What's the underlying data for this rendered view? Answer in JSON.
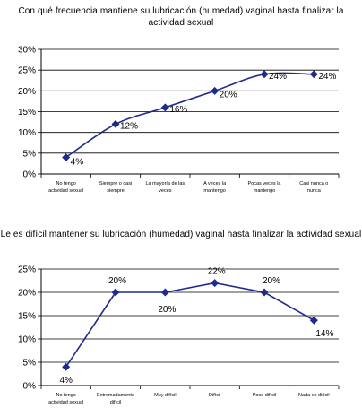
{
  "colors": {
    "series": "#1f2a8c",
    "axis": "#000000",
    "grid": "#000000"
  },
  "chart_data": [
    {
      "type": "line",
      "title": "Con qué frecuencia mantiene su lubricación (humedad) vaginal hasta finalizar la actividad sexual",
      "categories": [
        "No tengo actividad sexual",
        "Siempre o casi siempre",
        "La mayoría de las veces",
        "A veces la mantengo",
        "Pocas veces la mantengo",
        "Casi nunca o nunca"
      ],
      "values": [
        4,
        12,
        16,
        20,
        24,
        24
      ],
      "data_labels": [
        "4%",
        "12%",
        "16%",
        "20%",
        "24%",
        "24%"
      ],
      "ylim": [
        0,
        30
      ],
      "yticks": [
        "0%",
        "5%",
        "10%",
        "15%",
        "20%",
        "25%",
        "30%"
      ],
      "grid": true,
      "smooth": true,
      "marker": "diamond"
    },
    {
      "type": "line",
      "title": "Le es difícil mantener su lubricación (humedad) vaginal hasta finalizar la actividad sexual",
      "categories": [
        "No tengo actividad sexual",
        "Extremadamente difícil",
        "Muy difícil",
        "Difícil",
        "Poco difícil",
        "Nada es difícil"
      ],
      "values": [
        4,
        20,
        20,
        22,
        20,
        14
      ],
      "data_labels": [
        "4%",
        "20%",
        "20%",
        "22%",
        "20%",
        "14%"
      ],
      "ylim": [
        0,
        25
      ],
      "yticks": [
        "0%",
        "5%",
        "10%",
        "15%",
        "20%",
        "25%"
      ],
      "grid": true,
      "smooth": false,
      "marker": "diamond"
    }
  ]
}
